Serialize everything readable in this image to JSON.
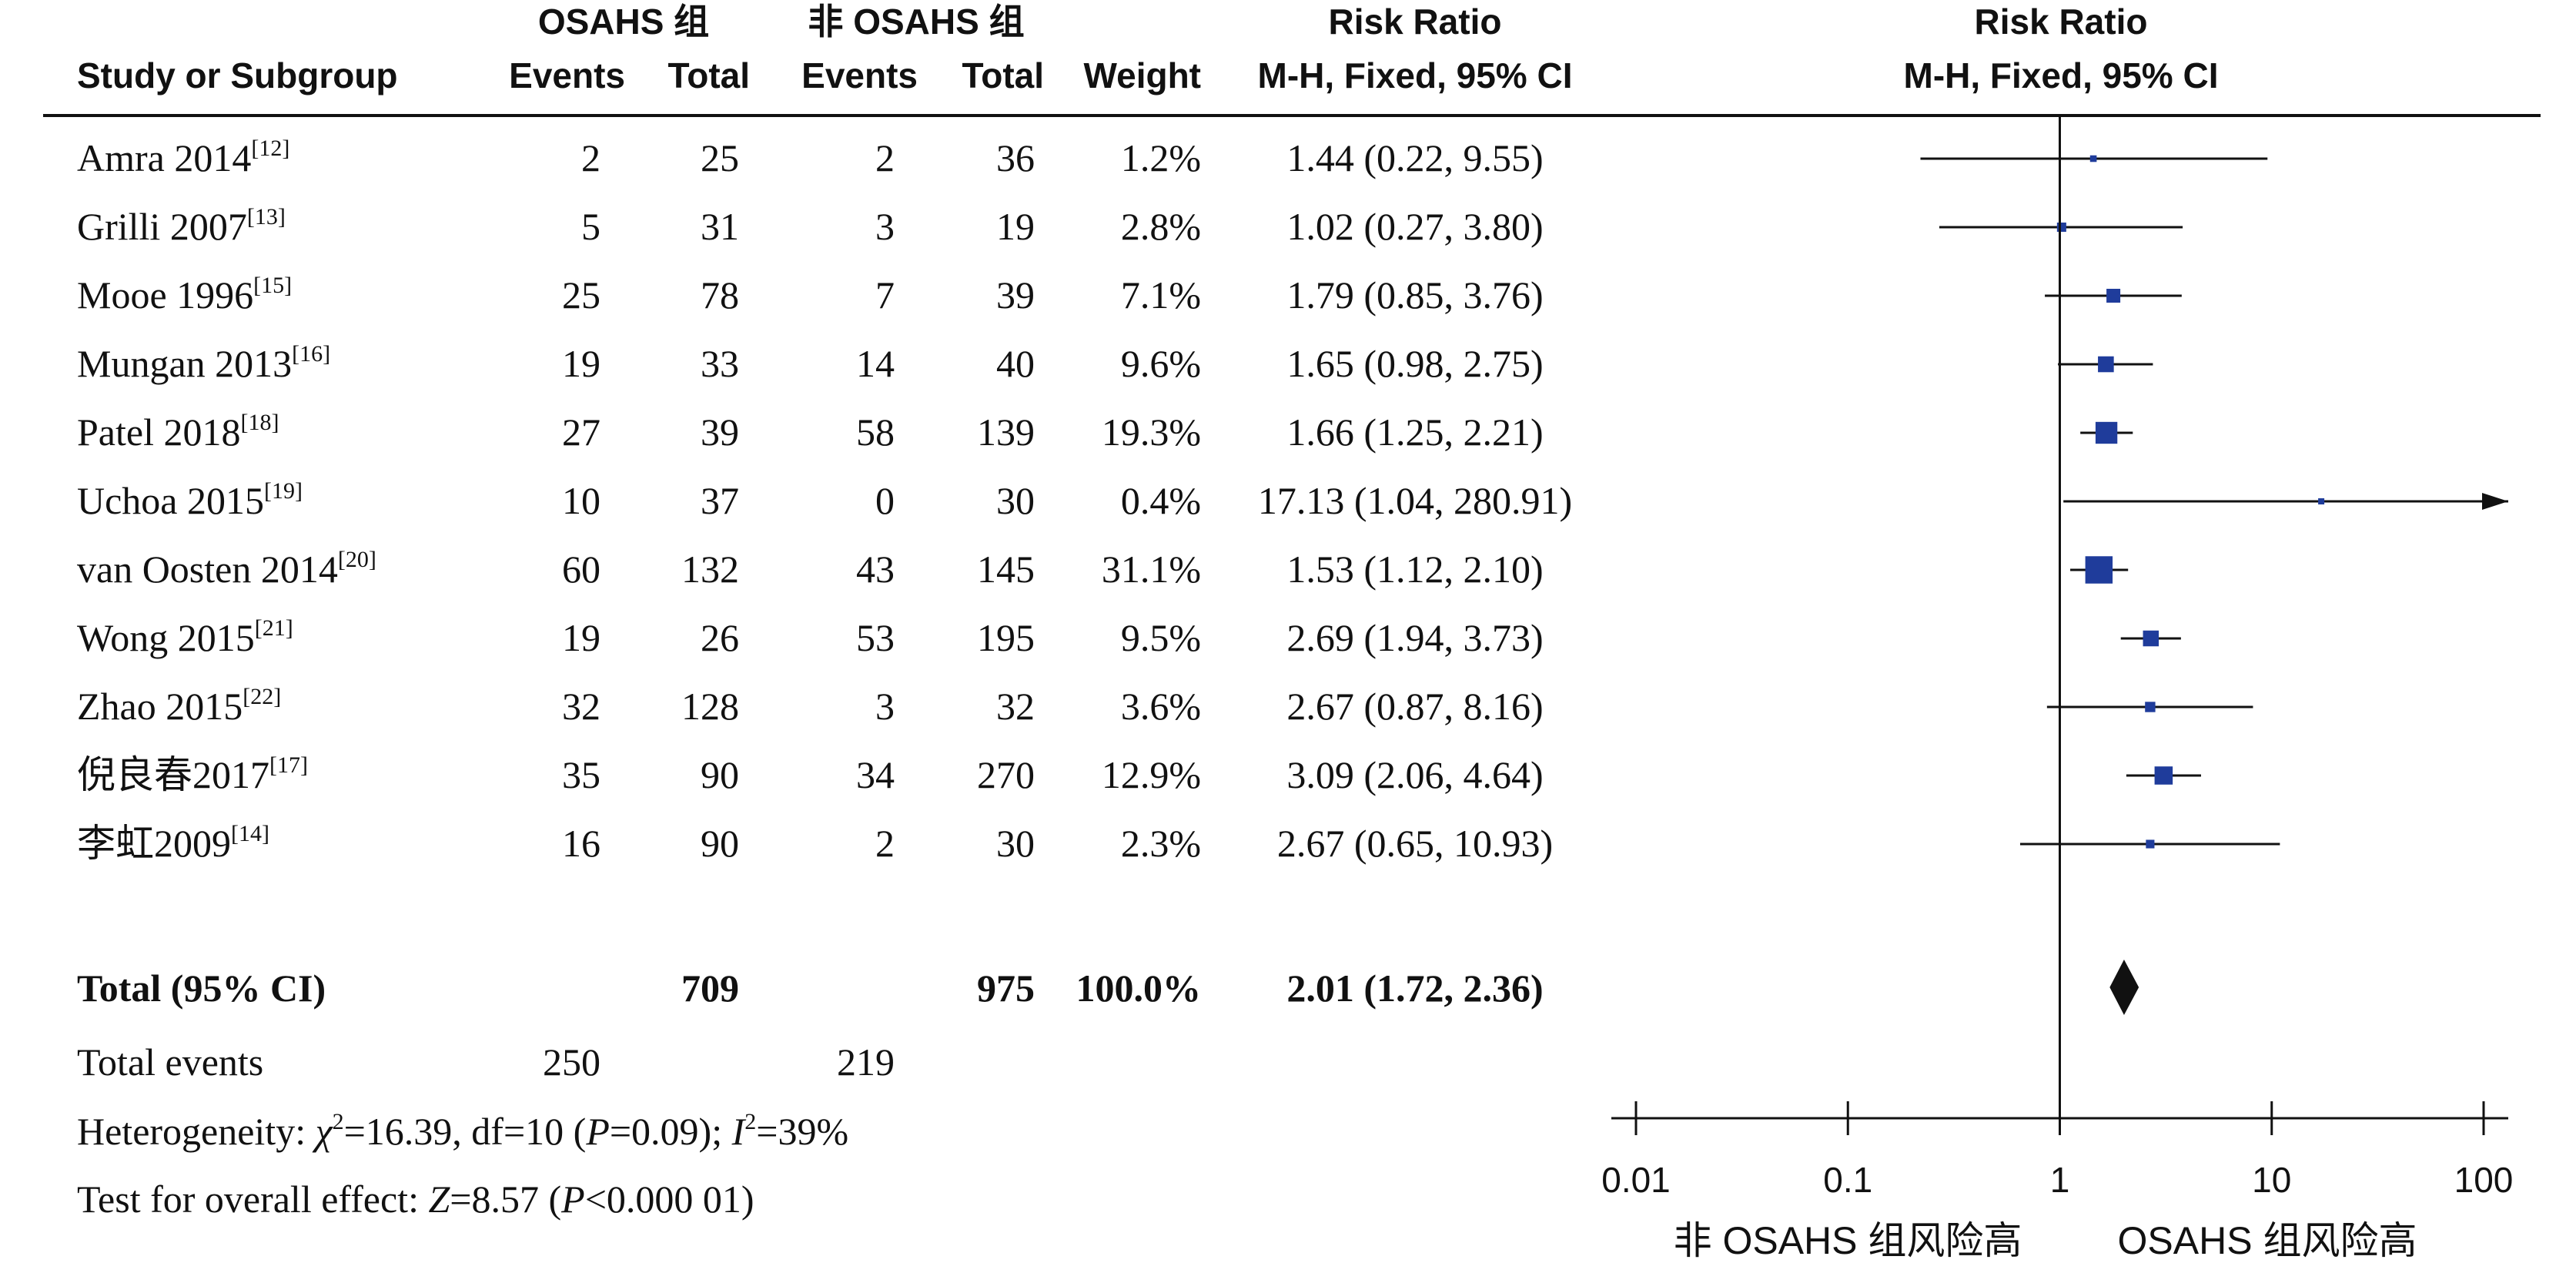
{
  "columns": {
    "study": "Study or Subgroup",
    "group1": "OSAHS 组",
    "group2": "非 OSAHS 组",
    "events": "Events",
    "total": "Total",
    "weight": "Weight",
    "rr_title": "Risk Ratio",
    "rr_method": "M-H, Fixed, 95% CI"
  },
  "chart_data": {
    "type": "forest",
    "x_scale": "log",
    "xlim": [
      0.01,
      100
    ],
    "null_line": 1,
    "x_ticks": [
      "0.01",
      "0.1",
      "1",
      "10",
      "100"
    ],
    "favours_left": "非 OSAHS 组风险高",
    "favours_right": "OSAHS 组风险高",
    "studies": [
      {
        "name": "Amra 2014",
        "ref": "[12]",
        "e1": "2",
        "t1": "25",
        "e2": "2",
        "t2": "36",
        "weight": "1.2%",
        "ci_text": "1.44 (0.22, 9.55)",
        "rr": 1.44,
        "lo": 0.22,
        "hi": 9.55,
        "w": 1.2
      },
      {
        "name": "Grilli 2007",
        "ref": "[13]",
        "e1": "5",
        "t1": "31",
        "e2": "3",
        "t2": "19",
        "weight": "2.8%",
        "ci_text": "1.02 (0.27, 3.80)",
        "rr": 1.02,
        "lo": 0.27,
        "hi": 3.8,
        "w": 2.8
      },
      {
        "name": "Mooe 1996",
        "ref": "[15]",
        "e1": "25",
        "t1": "78",
        "e2": "7",
        "t2": "39",
        "weight": "7.1%",
        "ci_text": "1.79 (0.85, 3.76)",
        "rr": 1.79,
        "lo": 0.85,
        "hi": 3.76,
        "w": 7.1
      },
      {
        "name": "Mungan 2013",
        "ref": "[16]",
        "e1": "19",
        "t1": "33",
        "e2": "14",
        "t2": "40",
        "weight": "9.6%",
        "ci_text": "1.65 (0.98, 2.75)",
        "rr": 1.65,
        "lo": 0.98,
        "hi": 2.75,
        "w": 9.6
      },
      {
        "name": "Patel 2018",
        "ref": "[18]",
        "e1": "27",
        "t1": "39",
        "e2": "58",
        "t2": "139",
        "weight": "19.3%",
        "ci_text": "1.66 (1.25, 2.21)",
        "rr": 1.66,
        "lo": 1.25,
        "hi": 2.21,
        "w": 19.3
      },
      {
        "name": "Uchoa 2015",
        "ref": "[19]",
        "e1": "10",
        "t1": "37",
        "e2": "0",
        "t2": "30",
        "weight": "0.4%",
        "ci_text": "17.13 (1.04, 280.91)",
        "rr": 17.13,
        "lo": 1.04,
        "hi": 280.91,
        "w": 0.4
      },
      {
        "name": "van Oosten 2014",
        "ref": "[20]",
        "e1": "60",
        "t1": "132",
        "e2": "43",
        "t2": "145",
        "weight": "31.1%",
        "ci_text": "1.53 (1.12, 2.10)",
        "rr": 1.53,
        "lo": 1.12,
        "hi": 2.1,
        "w": 31.1
      },
      {
        "name": "Wong 2015",
        "ref": "[21]",
        "e1": "19",
        "t1": "26",
        "e2": "53",
        "t2": "195",
        "weight": "9.5%",
        "ci_text": "2.69 (1.94, 3.73)",
        "rr": 2.69,
        "lo": 1.94,
        "hi": 3.73,
        "w": 9.5
      },
      {
        "name": "Zhao 2015",
        "ref": "[22]",
        "e1": "32",
        "t1": "128",
        "e2": "3",
        "t2": "32",
        "weight": "3.6%",
        "ci_text": "2.67 (0.87, 8.16)",
        "rr": 2.67,
        "lo": 0.87,
        "hi": 8.16,
        "w": 3.6
      },
      {
        "name": "倪良春2017",
        "ref": "[17]",
        "e1": "35",
        "t1": "90",
        "e2": "34",
        "t2": "270",
        "weight": "12.9%",
        "ci_text": "3.09 (2.06, 4.64)",
        "rr": 3.09,
        "lo": 2.06,
        "hi": 4.64,
        "w": 12.9
      },
      {
        "name": "李虹2009",
        "ref": "[14]",
        "e1": "16",
        "t1": "90",
        "e2": "2",
        "t2": "30",
        "weight": "2.3%",
        "ci_text": "2.67 (0.65, 10.93)",
        "rr": 2.67,
        "lo": 0.65,
        "hi": 10.93,
        "w": 2.3
      }
    ],
    "total": {
      "label": "Total (95% CI)",
      "t1": "709",
      "t2": "975",
      "weight": "100.0%",
      "ci_text": "2.01 (1.72, 2.36)",
      "rr": 2.01,
      "lo": 1.72,
      "hi": 2.36
    },
    "total_events": {
      "label": "Total events",
      "e1": "250",
      "e2": "219"
    },
    "heterogeneity": {
      "prefix": "Heterogeneity: ",
      "chi_sym": "χ",
      "chi_val": "=16.39, df=10 (",
      "p_sym": "P",
      "p_val": "=0.09); ",
      "i_sym": "I",
      "i_val": "=39%"
    },
    "overall": {
      "prefix": "Test for overall effect: ",
      "z_sym": "Z",
      "z_val": "=8.57 (",
      "p_sym": "P",
      "p_val": "<0.000 01)"
    },
    "colors": {
      "marker": "#1f3c9b",
      "line": "#111111",
      "diamond": "#111111"
    }
  }
}
